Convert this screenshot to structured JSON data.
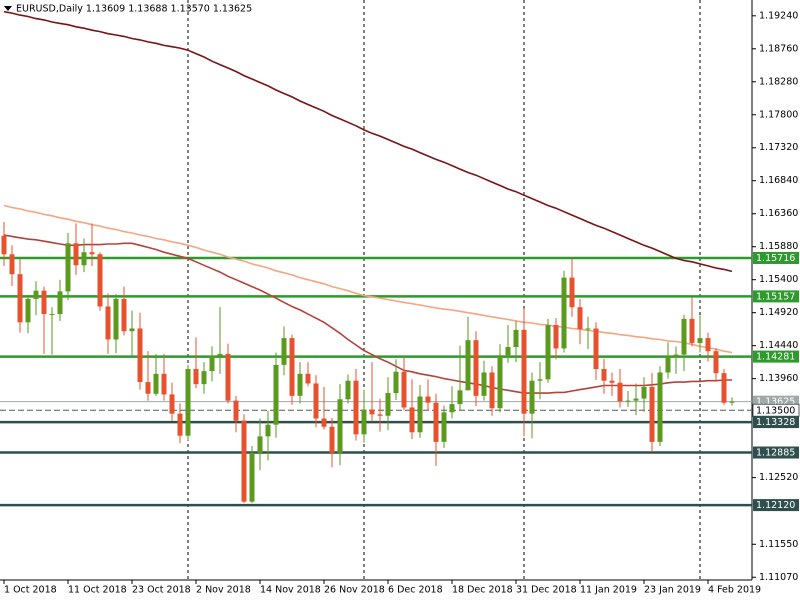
{
  "chart_data": {
    "type": "candlestick",
    "title": "EURUSD,Daily  1.13609 1.13688 1.13570 1.13625",
    "categories": [
      "1 Oct 2018",
      null,
      null,
      null,
      null,
      null,
      null,
      null,
      "11 Oct 2018",
      null,
      null,
      null,
      null,
      null,
      null,
      null,
      "23 Oct 2018",
      null,
      null,
      null,
      null,
      null,
      null,
      null,
      "2 Nov 2018",
      null,
      null,
      null,
      null,
      null,
      null,
      null,
      "14 Nov 2018",
      null,
      null,
      null,
      null,
      null,
      null,
      null,
      "26 Nov 2018",
      null,
      null,
      null,
      null,
      null,
      null,
      null,
      "6 Dec 2018",
      null,
      null,
      null,
      null,
      null,
      null,
      null,
      "18 Dec 2018",
      null,
      null,
      null,
      null,
      null,
      null,
      null,
      "31 Dec 2018",
      null,
      null,
      null,
      null,
      null,
      null,
      null,
      "11 Jan 2019",
      null,
      null,
      null,
      null,
      null,
      null,
      null,
      "23 Jan 2019",
      null,
      null,
      null,
      null,
      null,
      null,
      null,
      "4 Feb 2019",
      null,
      null,
      null
    ],
    "ohlc": [
      [
        1.1604,
        1.1624,
        1.156,
        1.1577
      ],
      [
        1.1577,
        1.159,
        1.1531,
        1.1548
      ],
      [
        1.1548,
        1.157,
        1.1463,
        1.1478
      ],
      [
        1.1478,
        1.1518,
        1.1462,
        1.1512
      ],
      [
        1.1512,
        1.1538,
        1.1488,
        1.1524
      ],
      [
        1.1524,
        1.153,
        1.1432,
        1.149
      ],
      [
        1.149,
        1.15,
        1.1431,
        1.149
      ],
      [
        1.149,
        1.154,
        1.148,
        1.1523
      ],
      [
        1.1523,
        1.1608,
        1.151,
        1.1593
      ],
      [
        1.1593,
        1.1622,
        1.1547,
        1.1561
      ],
      [
        1.1561,
        1.16,
        1.1551,
        1.158
      ],
      [
        1.158,
        1.1622,
        1.156,
        1.1577
      ],
      [
        1.1577,
        1.158,
        1.1495,
        1.1501
      ],
      [
        1.1501,
        1.152,
        1.1432,
        1.1453
      ],
      [
        1.1453,
        1.1519,
        1.1433,
        1.1512
      ],
      [
        1.1512,
        1.153,
        1.1459,
        1.1465
      ],
      [
        1.1465,
        1.1495,
        1.1428,
        1.1469
      ],
      [
        1.1469,
        1.1492,
        1.138,
        1.1391
      ],
      [
        1.1391,
        1.1436,
        1.1364,
        1.1374
      ],
      [
        1.1374,
        1.1432,
        1.1371,
        1.1403
      ],
      [
        1.1403,
        1.1432,
        1.1364,
        1.1373
      ],
      [
        1.1373,
        1.139,
        1.1335,
        1.1345
      ],
      [
        1.1345,
        1.136,
        1.1302,
        1.1313
      ],
      [
        1.1313,
        1.1416,
        1.1306,
        1.141
      ],
      [
        1.141,
        1.1456,
        1.1382,
        1.1388
      ],
      [
        1.1388,
        1.142,
        1.1374,
        1.1407
      ],
      [
        1.1407,
        1.1443,
        1.1392,
        1.1429
      ],
      [
        1.1429,
        1.15,
        1.1403,
        1.1432
      ],
      [
        1.1432,
        1.1447,
        1.136,
        1.1364
      ],
      [
        1.1364,
        1.1371,
        1.1318,
        1.1335
      ],
      [
        1.1335,
        1.1344,
        1.1215,
        1.1217
      ],
      [
        1.1217,
        1.1298,
        1.1215,
        1.1288
      ],
      [
        1.1288,
        1.1338,
        1.1263,
        1.1312
      ],
      [
        1.1312,
        1.1349,
        1.1277,
        1.1329
      ],
      [
        1.1329,
        1.1434,
        1.131,
        1.1416
      ],
      [
        1.1416,
        1.1472,
        1.1401,
        1.1455
      ],
      [
        1.1455,
        1.146,
        1.1358,
        1.1371
      ],
      [
        1.1371,
        1.142,
        1.136,
        1.1403
      ],
      [
        1.1403,
        1.142,
        1.1385,
        1.1389
      ],
      [
        1.1389,
        1.1401,
        1.1325,
        1.1338
      ],
      [
        1.1338,
        1.1384,
        1.1322,
        1.1326
      ],
      [
        1.1326,
        1.1339,
        1.1267,
        1.1288
      ],
      [
        1.1288,
        1.1388,
        1.127,
        1.1366
      ],
      [
        1.1366,
        1.1402,
        1.136,
        1.1393
      ],
      [
        1.1393,
        1.141,
        1.1306,
        1.1315
      ],
      [
        1.1315,
        1.138,
        1.1303,
        1.1351
      ],
      [
        1.1351,
        1.142,
        1.1334,
        1.1344
      ],
      [
        1.1344,
        1.1367,
        1.1319,
        1.1342
      ],
      [
        1.1342,
        1.1398,
        1.1321,
        1.1375
      ],
      [
        1.1375,
        1.1424,
        1.1365,
        1.1406
      ],
      [
        1.1406,
        1.1426,
        1.135,
        1.1354
      ],
      [
        1.1354,
        1.1395,
        1.1308,
        1.1318
      ],
      [
        1.1318,
        1.1387,
        1.131,
        1.137
      ],
      [
        1.137,
        1.1395,
        1.135,
        1.1361
      ],
      [
        1.1361,
        1.1374,
        1.1269,
        1.1304
      ],
      [
        1.1304,
        1.1357,
        1.1295,
        1.1347
      ],
      [
        1.1347,
        1.1385,
        1.1338,
        1.1359
      ],
      [
        1.1359,
        1.1444,
        1.135,
        1.1379
      ],
      [
        1.1379,
        1.1486,
        1.1379,
        1.1452
      ],
      [
        1.1452,
        1.1465,
        1.1356,
        1.1371
      ],
      [
        1.1371,
        1.1422,
        1.1364,
        1.1405
      ],
      [
        1.1405,
        1.1414,
        1.1342,
        1.1353
      ],
      [
        1.1353,
        1.1446,
        1.1347,
        1.143
      ],
      [
        1.143,
        1.1474,
        1.1419,
        1.1442
      ],
      [
        1.1442,
        1.148,
        1.142,
        1.1467
      ],
      [
        1.1467,
        1.1498,
        1.1312,
        1.1345
      ],
      [
        1.1345,
        1.1405,
        1.1309,
        1.1393
      ],
      [
        1.1393,
        1.142,
        1.1366,
        1.1395
      ],
      [
        1.1395,
        1.1483,
        1.139,
        1.1474
      ],
      [
        1.1474,
        1.1484,
        1.1424,
        1.144
      ],
      [
        1.144,
        1.1553,
        1.1434,
        1.1543
      ],
      [
        1.1543,
        1.157,
        1.1486,
        1.15
      ],
      [
        1.15,
        1.1512,
        1.1446,
        1.1468
      ],
      [
        1.1468,
        1.1486,
        1.1439,
        1.1469
      ],
      [
        1.1469,
        1.1478,
        1.1394,
        1.141
      ],
      [
        1.141,
        1.1425,
        1.1374,
        1.1393
      ],
      [
        1.1393,
        1.1405,
        1.1371,
        1.139
      ],
      [
        1.139,
        1.141,
        1.1354,
        1.1363
      ],
      [
        1.1363,
        1.1378,
        1.1355,
        1.1364
      ],
      [
        1.1364,
        1.1389,
        1.1343,
        1.1367
      ],
      [
        1.1367,
        1.1398,
        1.1348,
        1.1384
      ],
      [
        1.1384,
        1.1404,
        1.1289,
        1.1304
      ],
      [
        1.1304,
        1.1414,
        1.1298,
        1.1405
      ],
      [
        1.1405,
        1.1449,
        1.1396,
        1.1428
      ],
      [
        1.1428,
        1.1443,
        1.1403,
        1.1431
      ],
      [
        1.1431,
        1.1489,
        1.1407,
        1.1483
      ],
      [
        1.1483,
        1.1514,
        1.1443,
        1.1448
      ],
      [
        1.1448,
        1.1488,
        1.1434,
        1.1455
      ],
      [
        1.1455,
        1.1463,
        1.1421,
        1.1436
      ],
      [
        1.1436,
        1.144,
        1.1393,
        1.1404
      ],
      [
        1.1404,
        1.141,
        1.1358,
        1.13609
      ],
      [
        1.13609,
        1.13688,
        1.1357,
        1.13625
      ]
    ],
    "up_color": "#5a9a1c",
    "down_color": "#e8512d",
    "series": [
      {
        "color": "#7a1414",
        "values": [
          1.193,
          1.1928,
          1.1925,
          1.1923,
          1.192,
          1.1918,
          1.1915,
          1.1913,
          1.1911,
          1.1908,
          1.1906,
          1.1903,
          1.1901,
          1.1898,
          1.1896,
          1.1894,
          1.1891,
          1.1889,
          1.1886,
          1.1884,
          1.1881,
          1.1879,
          1.1877,
          1.1874,
          1.1869,
          1.1864,
          1.1858,
          1.1853,
          1.1848,
          1.1843,
          1.1837,
          1.1832,
          1.1827,
          1.1822,
          1.1816,
          1.1811,
          1.1806,
          1.18,
          1.1795,
          1.179,
          1.1785,
          1.1779,
          1.1774,
          1.1769,
          1.1764,
          1.1758,
          1.1753,
          1.1749,
          1.1744,
          1.1739,
          1.1734,
          1.173,
          1.1725,
          1.172,
          1.1715,
          1.1711,
          1.1706,
          1.1701,
          1.1696,
          1.1692,
          1.1687,
          1.1682,
          1.1677,
          1.1672,
          1.1668,
          1.1663,
          1.1658,
          1.1653,
          1.1648,
          1.1644,
          1.1639,
          1.1634,
          1.1629,
          1.1624,
          1.1619,
          1.1615,
          1.161,
          1.1605,
          1.16,
          1.1595,
          1.159,
          1.1586,
          1.1581,
          1.1576,
          1.1571,
          1.1568,
          1.1566,
          1.1563,
          1.156,
          1.1557,
          1.1555,
          1.1552
        ]
      },
      {
        "color": "#f4a582",
        "values": [
          1.1648,
          1.1645,
          1.1643,
          1.164,
          1.1638,
          1.1635,
          1.1633,
          1.163,
          1.1628,
          1.1625,
          1.1623,
          1.162,
          1.1618,
          1.1615,
          1.1613,
          1.161,
          1.1608,
          1.1605,
          1.1603,
          1.16,
          1.1598,
          1.1595,
          1.1593,
          1.159,
          1.1587,
          1.1583,
          1.158,
          1.1577,
          1.1573,
          1.157,
          1.1567,
          1.1563,
          1.156,
          1.1557,
          1.1553,
          1.155,
          1.1547,
          1.1543,
          1.154,
          1.1537,
          1.1534,
          1.153,
          1.1527,
          1.1524,
          1.152,
          1.1517,
          1.1515,
          1.1513,
          1.1511,
          1.1509,
          1.1507,
          1.1505,
          1.1503,
          1.1501,
          1.1499,
          1.1497,
          1.1496,
          1.1494,
          1.1492,
          1.149,
          1.1488,
          1.1486,
          1.1484,
          1.1482,
          1.148,
          1.1478,
          1.1477,
          1.1475,
          1.1474,
          1.1472,
          1.1471,
          1.1469,
          1.1468,
          1.1466,
          1.1465,
          1.1463,
          1.1462,
          1.146,
          1.1459,
          1.1457,
          1.1456,
          1.1454,
          1.1453,
          1.1451,
          1.145,
          1.1448,
          1.1446,
          1.1443,
          1.1441,
          1.1439,
          1.1436,
          1.1434
        ]
      },
      {
        "color": "#b5423a",
        "values": [
          1.1605,
          1.1603,
          1.1601,
          1.1599,
          1.1598,
          1.1596,
          1.1594,
          1.1592,
          1.159,
          1.159,
          1.1591,
          1.1591,
          1.1591,
          1.1592,
          1.1592,
          1.1593,
          1.1593,
          1.159,
          1.1587,
          1.1584,
          1.158,
          1.1577,
          1.1574,
          1.1571,
          1.1566,
          1.1561,
          1.1556,
          1.1551,
          1.1545,
          1.154,
          1.1535,
          1.153,
          1.1525,
          1.1519,
          1.1513,
          1.1507,
          1.1501,
          1.1496,
          1.149,
          1.1484,
          1.1478,
          1.147,
          1.1462,
          1.1453,
          1.1445,
          1.1437,
          1.1431,
          1.1425,
          1.142,
          1.1414,
          1.1408,
          1.1406,
          1.1403,
          1.1401,
          1.1399,
          1.1396,
          1.1394,
          1.1392,
          1.139,
          1.1388,
          1.1386,
          1.1383,
          1.1381,
          1.1379,
          1.1377,
          1.1375,
          1.1375,
          1.1375,
          1.1375,
          1.1376,
          1.1376,
          1.1378,
          1.138,
          1.1382,
          1.1384,
          1.1386,
          1.1386,
          1.1386,
          1.1386,
          1.1386,
          1.1386,
          1.1387,
          1.1388,
          1.139,
          1.1391,
          1.1391,
          1.1392,
          1.1392,
          1.1393,
          1.1393,
          1.1394,
          1.1394
        ]
      }
    ],
    "levels": [
      {
        "value": 1.15716,
        "label": "1.15716",
        "color": "#2e9a2e",
        "style": "thick"
      },
      {
        "value": 1.15157,
        "label": "1.15157",
        "color": "#2e9a2e",
        "style": "thick"
      },
      {
        "value": 1.14281,
        "label": "1.14281",
        "color": "#2e9a2e",
        "style": "thick"
      },
      {
        "value": 1.13625,
        "label": "1.13625",
        "color": "#a0a8a8",
        "style": "thin"
      },
      {
        "value": 1.135,
        "label": "1.13500",
        "color": "#505a5a",
        "style": "dashed"
      },
      {
        "value": 1.13328,
        "label": "1.13328",
        "color": "#2f4f4f",
        "style": "thick"
      },
      {
        "value": 1.12885,
        "label": "1.12885",
        "color": "#2f4f4f",
        "style": "thick"
      },
      {
        "value": 1.1212,
        "label": "1.12120",
        "color": "#2f4f4f",
        "style": "thick"
      }
    ],
    "ylim": [
      1.1103,
      1.1947
    ],
    "yticks": [
      {
        "value": 1.1924,
        "label": "1.19240"
      },
      {
        "value": 1.1876,
        "label": "1.18760"
      },
      {
        "value": 1.1828,
        "label": "1.18280"
      },
      {
        "value": 1.178,
        "label": "1.17800"
      },
      {
        "value": 1.1732,
        "label": "1.17320"
      },
      {
        "value": 1.1684,
        "label": "1.16840"
      },
      {
        "value": 1.1636,
        "label": "1.16360"
      },
      {
        "value": 1.1588,
        "label": "1.15880"
      },
      {
        "value": 1.154,
        "label": "1.15400"
      },
      {
        "value": 1.1492,
        "label": "1.14920"
      },
      {
        "value": 1.1444,
        "label": "1.14440"
      },
      {
        "value": 1.1396,
        "label": "1.13960"
      },
      {
        "value": 1.1252,
        "label": "1.12520"
      },
      {
        "value": 1.1155,
        "label": "1.11550"
      },
      {
        "value": 1.1107,
        "label": "1.11070"
      }
    ]
  }
}
